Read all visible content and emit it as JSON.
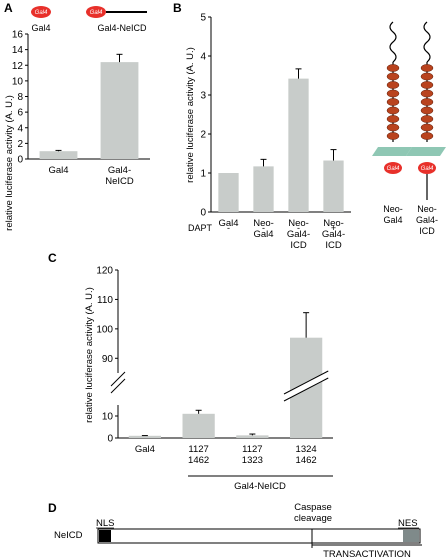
{
  "colors": {
    "bar": "#c8ccca",
    "axis": "#000000",
    "gal4_pill": "#e8302a",
    "notch_repeat": "#b9431e",
    "membrane": "#8fc7b4",
    "nls_box": "#000000",
    "nes_box": "#7f8a8a"
  },
  "panel_labels": {
    "a": "A",
    "b": "B",
    "c": "C",
    "d": "D"
  },
  "panel_a": {
    "legend": {
      "gal4_pill": "Gal4",
      "gal4_label": "Gal4",
      "nelcd_pill": "Gal4",
      "nelcd_label": "Gal4-NeICD"
    }
  },
  "panel_b": {
    "dapt_label": "DAPT",
    "dapt_values": [
      "-",
      "-",
      "-",
      "+"
    ],
    "schematics": [
      {
        "pill": "Gal4",
        "label_lines": [
          "Neo-",
          "Gal4"
        ]
      },
      {
        "pill": "Gal4",
        "label_lines": [
          "Neo-",
          "Gal4-",
          "ICD"
        ]
      }
    ]
  },
  "panel_c": {
    "group_label": "Gal4-NeICD"
  },
  "panel_d": {
    "row_label": "NeICD",
    "nls_label": "NLS",
    "nes_label": "NES",
    "caspase_lines": [
      "Caspase",
      "cleavage"
    ],
    "transactivation_label": "TRANSACTIVATION"
  },
  "chart_data": [
    {
      "type": "bar",
      "panel": "A",
      "categories": [
        [
          "Gal4"
        ],
        [
          "Gal4-",
          "NeICD"
        ]
      ],
      "values": [
        1.0,
        12.4
      ],
      "errors": [
        0.1,
        1.0
      ],
      "ylabel": "relative luciferase activity (A. U.)",
      "ylim": [
        0,
        16
      ],
      "yticks": [
        0,
        2,
        4,
        6,
        8,
        10,
        12,
        14,
        16
      ]
    },
    {
      "type": "bar",
      "panel": "B",
      "categories": [
        [
          "Gal4"
        ],
        [
          "Neo-",
          "Gal4"
        ],
        [
          "Neo-",
          "Gal4-",
          "ICD"
        ],
        [
          "Neo-",
          "Gal4-",
          "ICD"
        ]
      ],
      "values": [
        1.0,
        1.17,
        3.42,
        1.32
      ],
      "errors": [
        0.0,
        0.18,
        0.25,
        0.28
      ],
      "ylabel": "relative luciferase activity (A. U.)",
      "ylim": [
        0,
        5
      ],
      "yticks": [
        0,
        1,
        2,
        3,
        4,
        5
      ]
    },
    {
      "type": "bar",
      "panel": "C",
      "categories": [
        [
          "Gal4"
        ],
        [
          "1127",
          "1462"
        ],
        [
          "1127",
          "1323"
        ],
        [
          "1324",
          "1462"
        ]
      ],
      "values": [
        1.0,
        11.0,
        1.2,
        97.0
      ],
      "errors": [
        0.1,
        1.6,
        0.6,
        8.5
      ],
      "ylabel": "relative luciferase activity (A. U.)",
      "broken_axis": {
        "lower": [
          0,
          15
        ],
        "upper": [
          85,
          120
        ]
      },
      "yticks": [
        0,
        10,
        90,
        100,
        110,
        120
      ]
    }
  ]
}
